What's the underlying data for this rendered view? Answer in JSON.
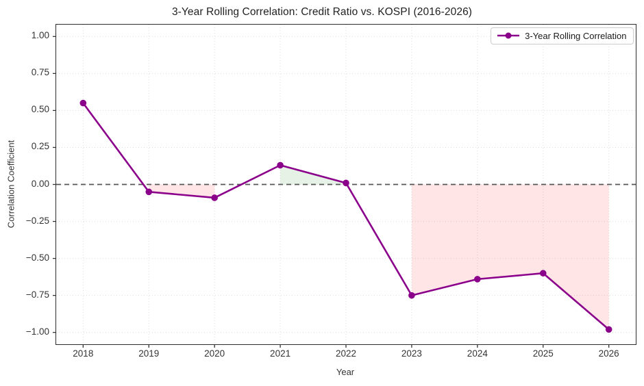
{
  "chart_data": {
    "type": "line",
    "title": "3-Year Rolling Correlation: Credit Ratio vs. KOSPI (2016-2026)",
    "xlabel": "Year",
    "ylabel": "Correlation Coefficient",
    "x": [
      2018,
      2019,
      2020,
      2021,
      2022,
      2023,
      2024,
      2025,
      2026
    ],
    "series": [
      {
        "name": "3-Year Rolling Correlation",
        "values": [
          0.55,
          -0.05,
          -0.09,
          0.13,
          0.01,
          -0.75,
          -0.64,
          -0.6,
          -0.98
        ],
        "color": "#8B008B",
        "marker": "circle"
      }
    ],
    "xlim": [
      2017.59,
      2026.41
    ],
    "ylim": [
      -1.08,
      1.08
    ],
    "xticks": [
      {
        "v": 2018,
        "label": "2018"
      },
      {
        "v": 2019,
        "label": "2019"
      },
      {
        "v": 2020,
        "label": "2020"
      },
      {
        "v": 2021,
        "label": "2021"
      },
      {
        "v": 2022,
        "label": "2022"
      },
      {
        "v": 2023,
        "label": "2023"
      },
      {
        "v": 2024,
        "label": "2024"
      },
      {
        "v": 2025,
        "label": "2025"
      },
      {
        "v": 2026,
        "label": "2026"
      }
    ],
    "yticks": [
      {
        "v": 1.0,
        "label": "1.00"
      },
      {
        "v": 0.75,
        "label": "0.75"
      },
      {
        "v": 0.5,
        "label": "0.50"
      },
      {
        "v": 0.25,
        "label": "0.25"
      },
      {
        "v": 0.0,
        "label": "0.00"
      },
      {
        "v": -0.25,
        "label": "−0.25"
      },
      {
        "v": -0.5,
        "label": "−0.50"
      },
      {
        "v": -0.75,
        "label": "−0.75"
      },
      {
        "v": -1.0,
        "label": "−1.00"
      }
    ],
    "grid": "dotted",
    "zero_line": {
      "value": 0,
      "style": "dashed",
      "color": "#555555"
    },
    "fill_positive_color": "rgba(0,128,0,0.10)",
    "fill_negative_color": "rgba(255,0,0,0.10)",
    "legend": {
      "position": "upper right",
      "entries": [
        "3-Year Rolling Correlation"
      ]
    }
  }
}
